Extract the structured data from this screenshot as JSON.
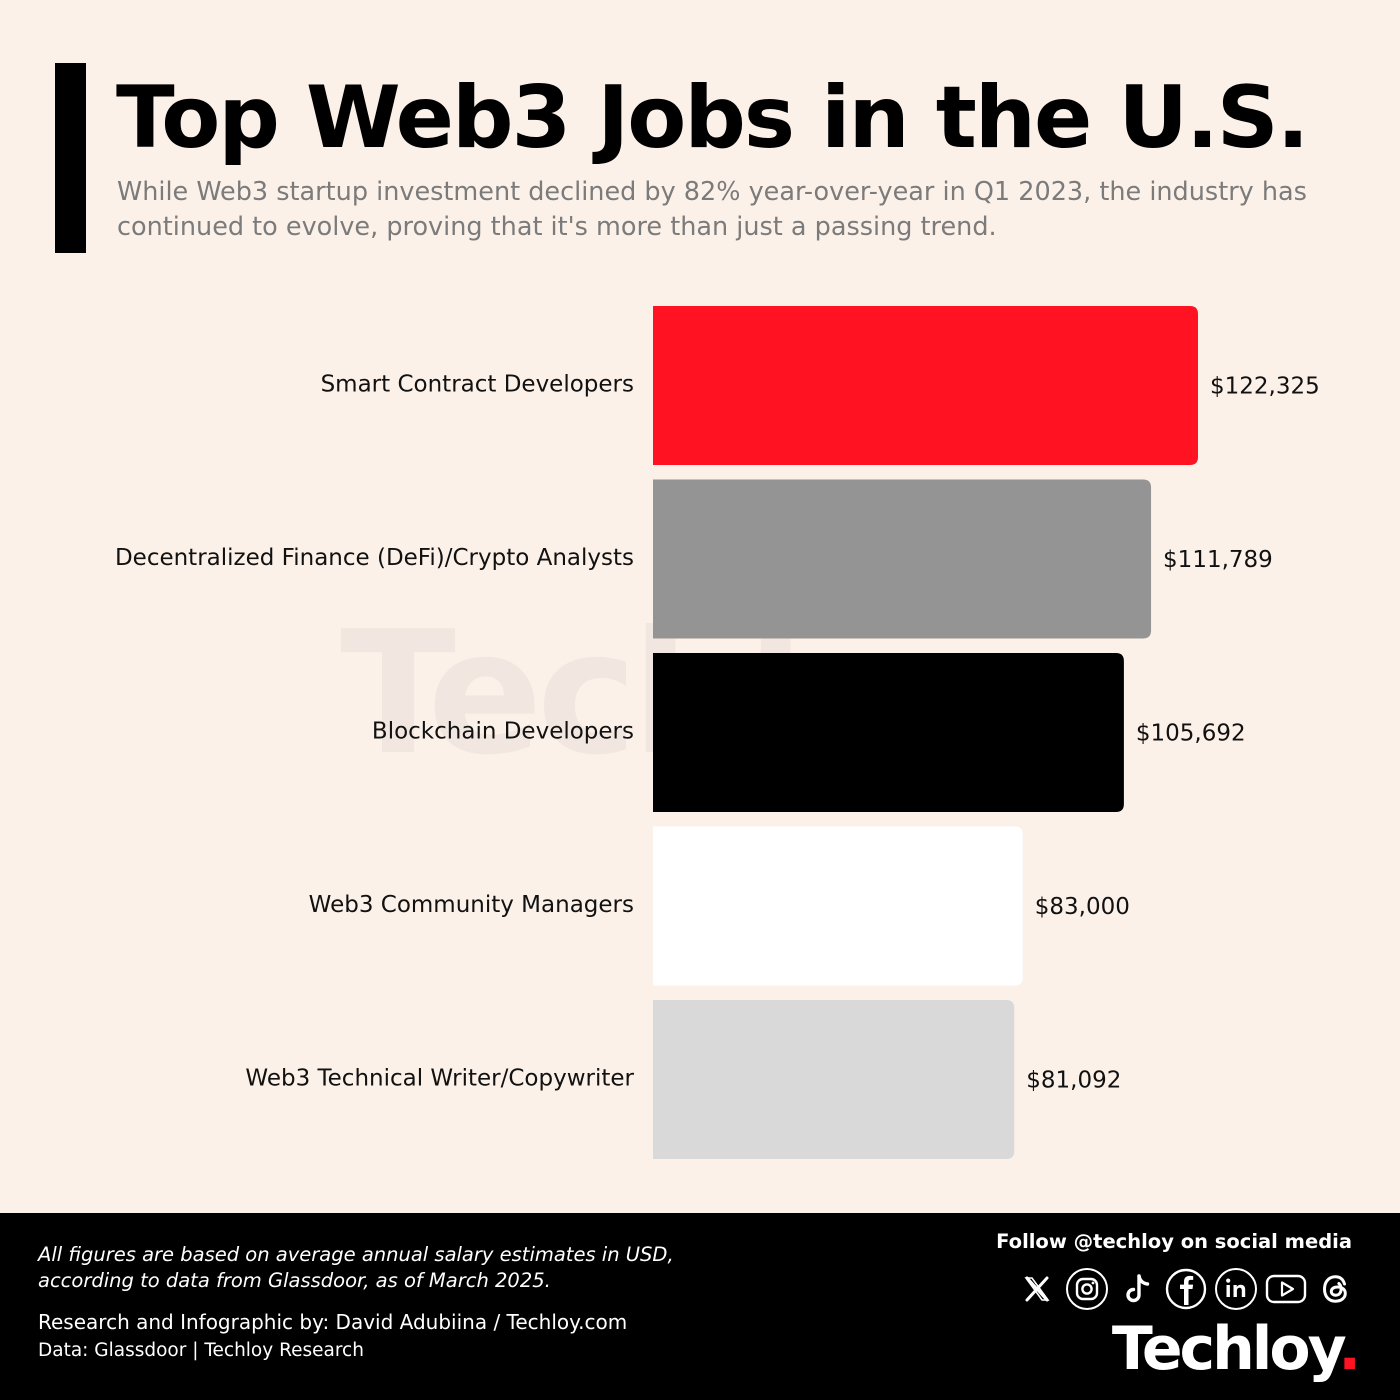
{
  "header": {
    "title": "Top Web3 Jobs in the U.S.",
    "subtitle": "While Web3 startup investment declined by 82% year-over-year in Q1 2023, the industry has continued to evolve, proving that it's more than just a passing trend."
  },
  "watermark": {
    "text": "Techloy",
    "dot": "."
  },
  "chart_data": {
    "type": "bar",
    "orientation": "horizontal",
    "title": "Top Web3 Jobs in the U.S.",
    "categories": [
      "Smart Contract Developers",
      "Decentralized Finance (DeFi)/Crypto Analysts",
      "Blockchain Developers",
      "Web3 Community Managers",
      "Web3 Technical Writer/Copywriter"
    ],
    "values": [
      122325,
      111789,
      105692,
      83000,
      81092
    ],
    "value_labels": [
      "$122,325",
      "$111,789",
      "$105,692",
      "$83,000",
      "$81,092"
    ],
    "colors": [
      "#ff1323",
      "#949494",
      "#000000",
      "#ffffff",
      "#d9d9d9"
    ],
    "unit": "USD",
    "grid": false,
    "legend": "none"
  },
  "footer": {
    "footnote": "All figures are based on average annual salary estimates in USD, according to data from Glassdoor, as of March 2025.",
    "credit": "Research and Infographic by: David Adubiina / Techloy.com",
    "data_source": "Data: Glassdoor | Techloy Research",
    "follow": "Follow @techloy on social media",
    "social_icons": [
      "x-icon",
      "instagram-icon",
      "tiktok-icon",
      "facebook-icon",
      "linkedin-icon",
      "youtube-icon",
      "threads-icon"
    ],
    "brand": "Techloy",
    "brand_dot": "."
  }
}
